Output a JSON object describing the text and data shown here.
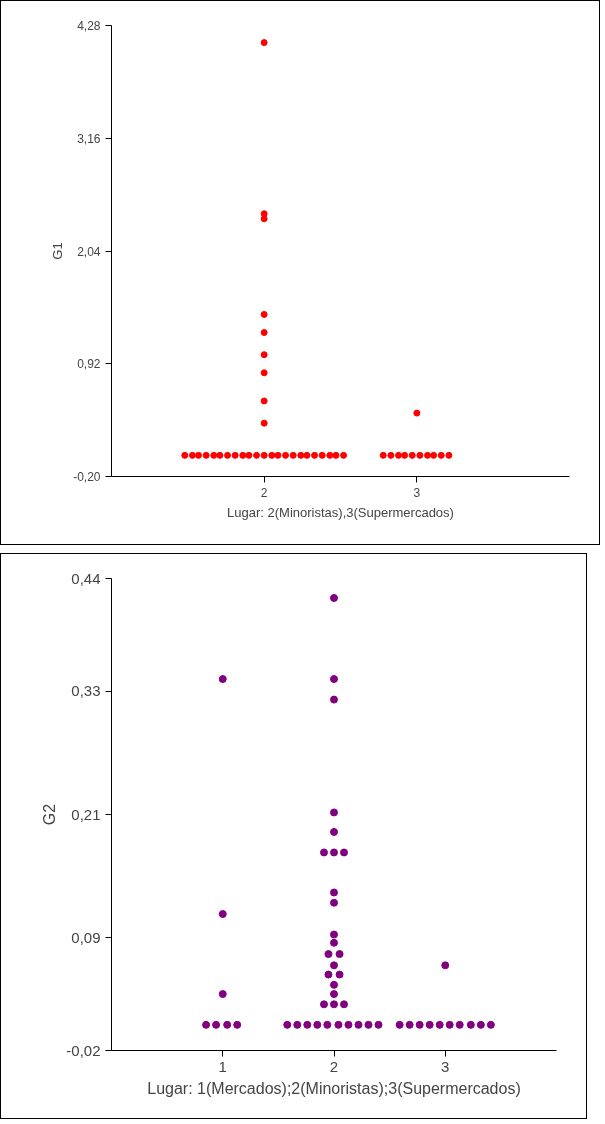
{
  "chart_data": [
    {
      "type": "scatter",
      "xlabel": "Lugar: 2(Minoristas),3(Supermercados)",
      "ylabel": "G1",
      "xlim": [
        1,
        4
      ],
      "ylim": [
        -0.2,
        4.28
      ],
      "xticks": [
        2,
        3
      ],
      "yticks": [
        {
          "value": -0.2,
          "label": "-0,20"
        },
        {
          "value": 0.92,
          "label": "0,92"
        },
        {
          "value": 2.04,
          "label": "2,04"
        },
        {
          "value": 3.16,
          "label": "3,16"
        },
        {
          "value": 4.28,
          "label": "4,28"
        }
      ],
      "grid": false,
      "marker": "circle",
      "series": [
        {
          "color": "#ff0000",
          "x": [
            2,
            2,
            2,
            2,
            2,
            2,
            2,
            2,
            2,
            3,
            1.48,
            1.53,
            1.57,
            1.62,
            1.67,
            1.71,
            1.76,
            1.81,
            1.86,
            1.9,
            1.95,
            2.0,
            2.05,
            2.09,
            2.14,
            2.19,
            2.24,
            2.28,
            2.33,
            2.38,
            2.43,
            2.47,
            2.52,
            2.78,
            2.83,
            2.88,
            2.92,
            2.97,
            3.02,
            3.07,
            3.11,
            3.16,
            3.21
          ],
          "values": [
            4.11,
            2.41,
            2.36,
            1.41,
            1.23,
            1.01,
            0.83,
            0.55,
            0.33,
            0.43,
            0.01,
            0.01,
            0.01,
            0.01,
            0.01,
            0.01,
            0.01,
            0.01,
            0.01,
            0.01,
            0.01,
            0.01,
            0.01,
            0.01,
            0.01,
            0.01,
            0.01,
            0.01,
            0.01,
            0.01,
            0.01,
            0.01,
            0.01,
            0.01,
            0.01,
            0.01,
            0.01,
            0.01,
            0.01,
            0.01,
            0.01,
            0.01,
            0.01
          ]
        }
      ]
    },
    {
      "type": "scatter",
      "xlabel": "Lugar: 1(Mercados);2(Minoristas);3(Supermercados)",
      "ylabel": "G2",
      "xlim": [
        0,
        4
      ],
      "ylim": [
        -0.02,
        0.44
      ],
      "xticks": [
        1,
        2,
        3
      ],
      "yticks": [
        {
          "value": -0.02,
          "label": "-0,02"
        },
        {
          "value": 0.09,
          "label": "0,09"
        },
        {
          "value": 0.21,
          "label": "0,21"
        },
        {
          "value": 0.33,
          "label": "0,33"
        },
        {
          "value": 0.44,
          "label": "0,44"
        }
      ],
      "grid": false,
      "marker": "circle",
      "series": [
        {
          "color": "#800080",
          "x": [
            1,
            1,
            1,
            0.85,
            0.94,
            1.04,
            1.13,
            2,
            2,
            2,
            2,
            2,
            1.91,
            2,
            2.09,
            2,
            2,
            2,
            2,
            1.95,
            2.05,
            2,
            1.95,
            2.05,
            2,
            2,
            1.91,
            2,
            2.09,
            1.58,
            1.67,
            1.76,
            1.85,
            1.94,
            2.04,
            2.13,
            2.22,
            2.31,
            2.4,
            3,
            2.59,
            2.68,
            2.77,
            2.86,
            2.95,
            3.04,
            3.13,
            3.23,
            3.32,
            3.41
          ],
          "values": [
            0.342,
            0.113,
            0.035,
            0.005,
            0.005,
            0.005,
            0.005,
            0.421,
            0.342,
            0.322,
            0.212,
            0.193,
            0.173,
            0.173,
            0.173,
            0.134,
            0.124,
            0.093,
            0.085,
            0.074,
            0.074,
            0.063,
            0.054,
            0.054,
            0.044,
            0.035,
            0.025,
            0.025,
            0.025,
            0.005,
            0.005,
            0.005,
            0.005,
            0.005,
            0.005,
            0.005,
            0.005,
            0.005,
            0.005,
            0.063,
            0.005,
            0.005,
            0.005,
            0.005,
            0.005,
            0.005,
            0.005,
            0.005,
            0.005,
            0.005
          ]
        }
      ]
    }
  ]
}
